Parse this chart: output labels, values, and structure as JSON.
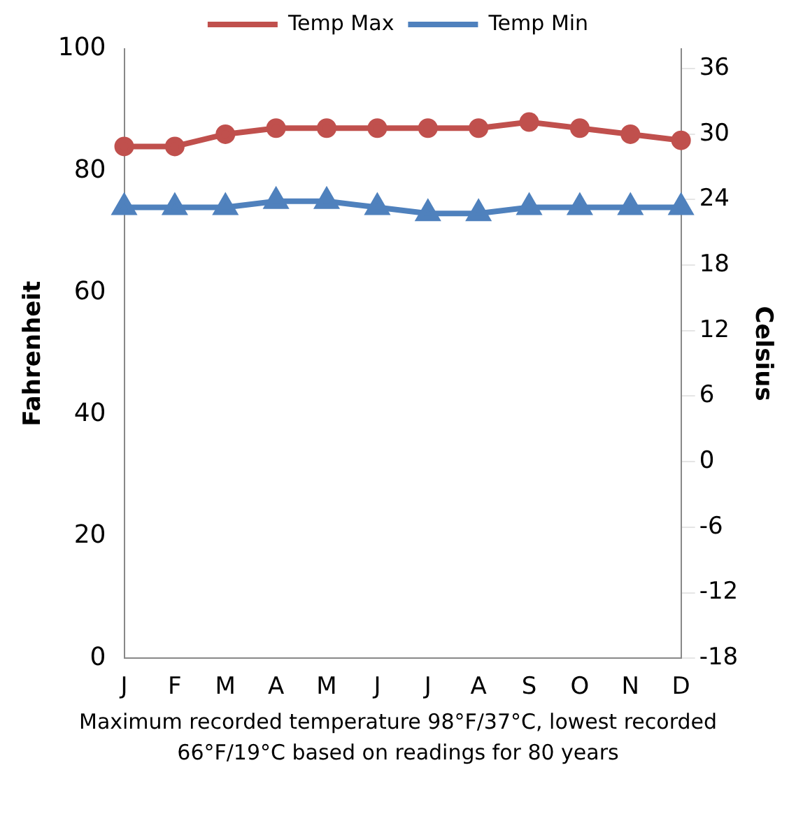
{
  "chart_data": {
    "type": "line",
    "categories": [
      "J",
      "F",
      "M",
      "A",
      "M",
      "J",
      "J",
      "A",
      "S",
      "O",
      "N",
      "D"
    ],
    "series": [
      {
        "name": "Temp Max",
        "color": "#c0504d",
        "marker": "circle",
        "values": [
          84,
          84,
          86,
          87,
          87,
          87,
          87,
          87,
          88,
          87,
          86,
          85
        ]
      },
      {
        "name": "Temp Min",
        "color": "#4f81bd",
        "marker": "triangle",
        "values": [
          74,
          74,
          74,
          75,
          75,
          74,
          73,
          73,
          74,
          74,
          74,
          74
        ]
      }
    ],
    "ylabel": "Fahrenheit",
    "y2label": "Celsius",
    "ylim": [
      0,
      100
    ],
    "yticks": [
      0,
      20,
      40,
      60,
      80,
      100
    ],
    "y2lim": [
      -18,
      37.8
    ],
    "y2ticks": [
      -18,
      -12,
      -6,
      0,
      6,
      12,
      18,
      24,
      30,
      36
    ],
    "legend": "top",
    "grid": false,
    "annotations": [
      "Maximum recorded temperature 98°F/37°C, lowest recorded 66°F/19°C based on readings for 80 years"
    ]
  }
}
